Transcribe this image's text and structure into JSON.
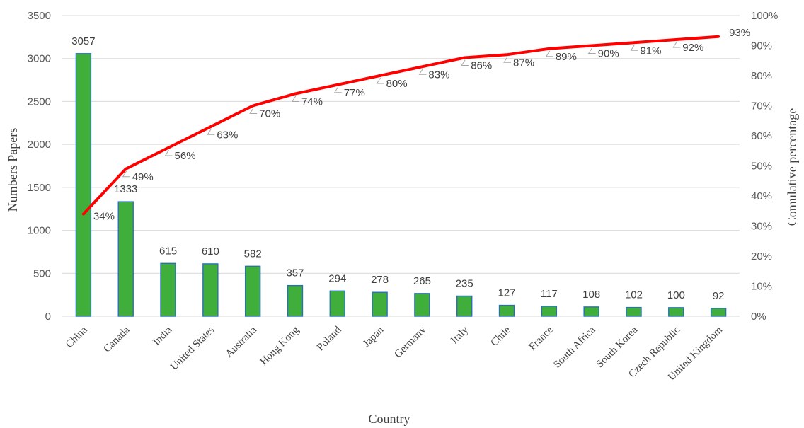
{
  "chart_data": {
    "type": "bar",
    "title": "",
    "xlabel": "Country",
    "ylabel": "Numbers Papers",
    "y2label": "Comulative percentage",
    "categories": [
      "China",
      "Canada",
      "India",
      "United States",
      "Australia",
      "Hong Kong",
      "Poland",
      "Japan",
      "Germany",
      "Italy",
      "Chile",
      "France",
      "South Africa",
      "South Korea",
      "Czech Republic",
      "United Kingdom"
    ],
    "series": [
      {
        "type": "bar",
        "axis": "left",
        "values": [
          3057,
          1333,
          615,
          610,
          582,
          357,
          294,
          278,
          265,
          235,
          127,
          117,
          108,
          102,
          100,
          92
        ]
      },
      {
        "type": "line",
        "axis": "right",
        "values": [
          34,
          49,
          56,
          63,
          70,
          74,
          77,
          80,
          83,
          86,
          87,
          89,
          90,
          91,
          92,
          93
        ]
      }
    ],
    "ylim": [
      0,
      3500
    ],
    "yticks": [
      "0",
      "500",
      "1000",
      "1500",
      "2000",
      "2500",
      "3000",
      "3500"
    ],
    "y2lim": [
      0,
      100
    ],
    "y2ticks": [
      "0%",
      "10%",
      "20%",
      "30%",
      "40%",
      "50%",
      "60%",
      "70%",
      "80%",
      "90%",
      "100%"
    ],
    "grid": true,
    "legend": "none",
    "colors": {
      "bar_fill": "#3fae3b",
      "bar_edge": "#2a6fb5",
      "line": "#ff0000"
    }
  }
}
